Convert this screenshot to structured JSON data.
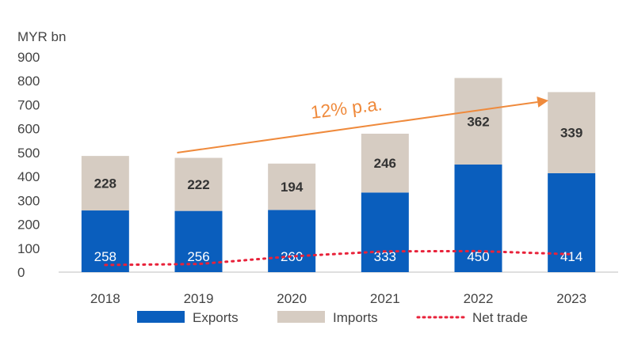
{
  "chart_data": {
    "type": "bar",
    "stacked": true,
    "unit_label": "MYR bn",
    "categories": [
      "2018",
      "2019",
      "2020",
      "2021",
      "2022",
      "2023"
    ],
    "series": [
      {
        "name": "Exports",
        "values": [
          258,
          256,
          260,
          333,
          450,
          414
        ],
        "color": "#0a5ebd"
      },
      {
        "name": "Imports",
        "values": [
          228,
          222,
          194,
          246,
          362,
          339
        ],
        "color": "#d6ccc2"
      }
    ],
    "line_series": {
      "name": "Net trade",
      "values": [
        30,
        34,
        66,
        87,
        88,
        75
      ],
      "color": "#e8223a",
      "style": "dotted"
    },
    "yticks": [
      0,
      100,
      200,
      300,
      400,
      500,
      600,
      700,
      800,
      900
    ],
    "ylim": [
      0,
      900
    ],
    "grid": false,
    "legend_position": "bottom",
    "annotation": {
      "text": "12% p.a.",
      "from_category": "2019",
      "to_category": "2023",
      "color": "#ef8a3c"
    }
  }
}
